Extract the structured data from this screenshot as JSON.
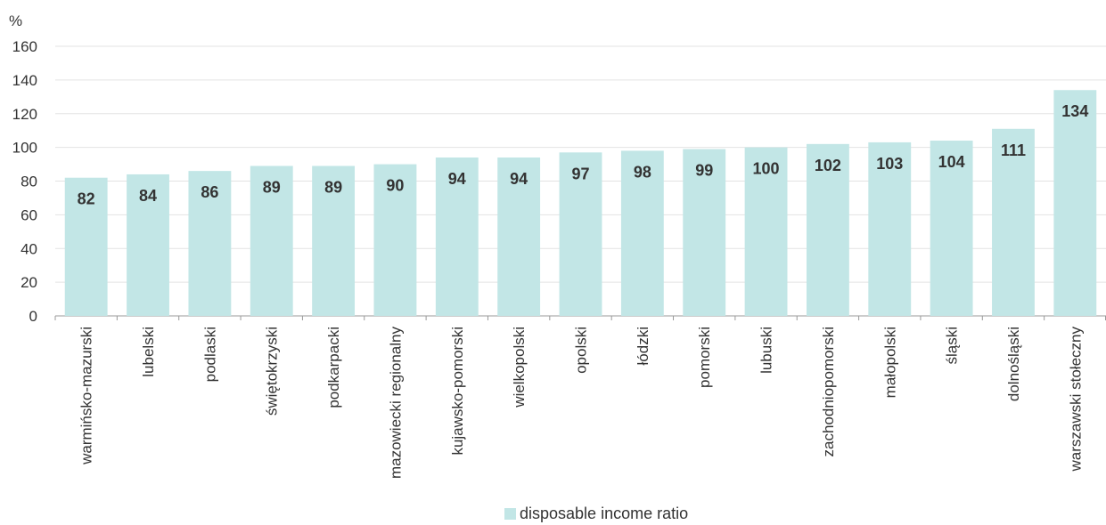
{
  "chart_data": {
    "type": "bar",
    "unit_label": "%",
    "categories": [
      "warmińsko-mazurski",
      "lubelski",
      "podlaski",
      "świętokrzyski",
      "podkarpacki",
      "mazowiecki regionalny",
      "kujawsko-pomorski",
      "wielkopolski",
      "opolski",
      "łódzki",
      "pomorski",
      "lubuski",
      "zachodniopomorski",
      "małopolski",
      "śląski",
      "dolnośląski",
      "warszawski stołeczny"
    ],
    "series": [
      {
        "name": "disposable income ratio",
        "values": [
          82,
          84,
          86,
          89,
          89,
          90,
          94,
          94,
          97,
          98,
          99,
          100,
          102,
          103,
          104,
          111,
          134
        ],
        "color": "#c2e6e6"
      }
    ],
    "ylim": [
      0,
      160
    ],
    "yticks": [
      0,
      20,
      40,
      60,
      80,
      100,
      120,
      140,
      160
    ],
    "grid": true,
    "legend_position": "bottom"
  }
}
